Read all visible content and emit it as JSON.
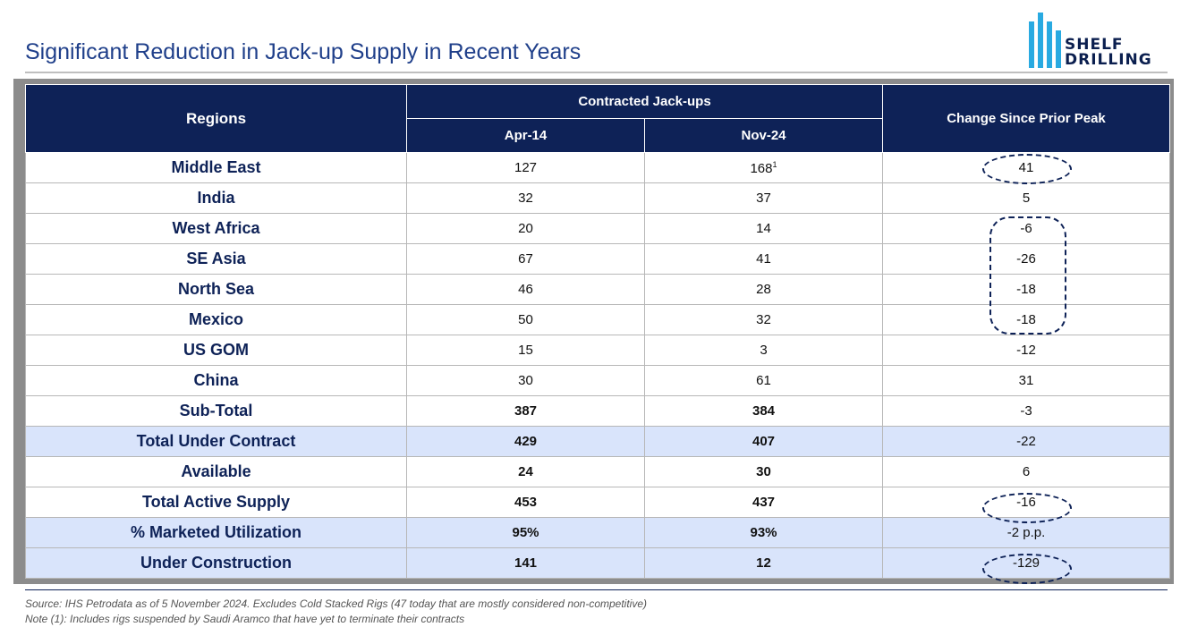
{
  "title": "Significant Reduction in Jack-up Supply in Recent Years",
  "logo": {
    "line1": "SHELF",
    "line2": "DRILLING",
    "accent": "#29aae1"
  },
  "table": {
    "headers": {
      "regions": "Regions",
      "group": "Contracted Jack-ups",
      "col1": "Apr-14",
      "col2": "Nov-24",
      "change": "Change Since Prior Peak"
    },
    "rows": [
      {
        "region": "Middle East",
        "apr14": "127",
        "nov24": "168",
        "nov24_note": "1",
        "change": "41"
      },
      {
        "region": "India",
        "apr14": "32",
        "nov24": "37",
        "change": "5"
      },
      {
        "region": "West Africa",
        "apr14": "20",
        "nov24": "14",
        "change": "-6"
      },
      {
        "region": "SE Asia",
        "apr14": "67",
        "nov24": "41",
        "change": "-26"
      },
      {
        "region": "North Sea",
        "apr14": "46",
        "nov24": "28",
        "change": "-18"
      },
      {
        "region": "Mexico",
        "apr14": "50",
        "nov24": "32",
        "change": "-18"
      },
      {
        "region": "US GOM",
        "apr14": "15",
        "nov24": "3",
        "change": "-12"
      },
      {
        "region": "China",
        "apr14": "30",
        "nov24": "61",
        "change": "31"
      },
      {
        "region": "Sub-Total",
        "apr14": "387",
        "nov24": "384",
        "change": "-3"
      },
      {
        "region": "Total Under Contract",
        "apr14": "429",
        "nov24": "407",
        "change": "-22"
      },
      {
        "region": "Available",
        "apr14": "24",
        "nov24": "30",
        "change": "6"
      },
      {
        "region": "Total Active Supply",
        "apr14": "453",
        "nov24": "437",
        "change": "-16"
      },
      {
        "region": "% Marketed Utilization",
        "apr14": "95%",
        "nov24": "93%",
        "change": "-2 p.p."
      },
      {
        "region": "Under Construction",
        "apr14": "141",
        "nov24": "12",
        "change": "-129"
      }
    ]
  },
  "footnotes": {
    "source": "Source: IHS Petrodata as of 5 November 2024. Excludes Cold Stacked Rigs (47 today that are mostly considered non-competitive)",
    "note": "Note (1): Includes rigs suspended by Saudi Aramco that have yet to terminate their contracts"
  },
  "colors": {
    "header": "#0e2257",
    "highlight_row": "#d9e4fb",
    "title": "#1f3f8a"
  }
}
